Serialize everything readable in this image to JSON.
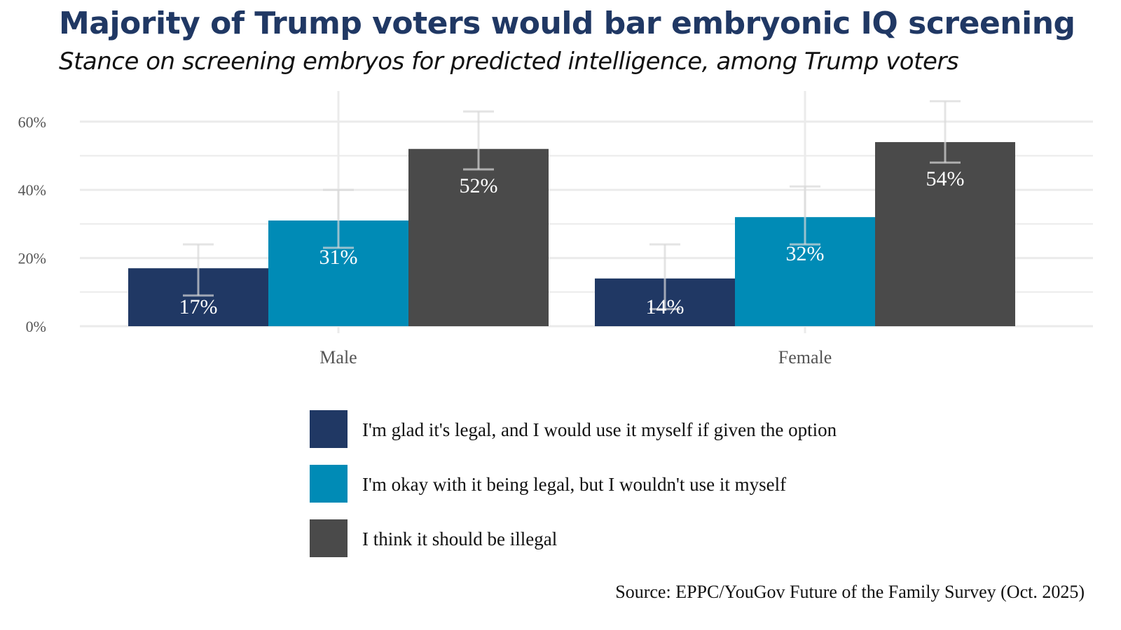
{
  "chart_data": {
    "type": "bar",
    "title": "Majority of Trump voters would bar embryonic IQ screening",
    "subtitle": "Stance on screening embryos for predicted intelligence, among Trump voters",
    "categories": [
      "Male",
      "Female"
    ],
    "series": [
      {
        "name": "I'm glad it's legal, and I would use it myself if given the option",
        "color": "#203864",
        "values": [
          17,
          14
        ],
        "labels": [
          "17%",
          "14%"
        ],
        "error_low": [
          9,
          5
        ],
        "error_high": [
          24,
          24
        ]
      },
      {
        "name": "I'm okay with it being legal, but I wouldn't use it myself",
        "color": "#008BB6",
        "values": [
          31,
          32
        ],
        "labels": [
          "31%",
          "32%"
        ],
        "error_low": [
          23,
          24
        ],
        "error_high": [
          40,
          41
        ]
      },
      {
        "name": "I think it should be illegal",
        "color": "#4A4A4A",
        "values": [
          52,
          54
        ],
        "labels": [
          "52%",
          "54%"
        ],
        "error_low": [
          46,
          48
        ],
        "error_high": [
          63,
          66
        ]
      }
    ],
    "yticks": [
      "0%",
      "20%",
      "40%",
      "60%"
    ],
    "ylim": [
      0,
      69
    ],
    "grid": true,
    "legend_position": "bottom",
    "source": "Source: EPPC/YouGov Future of the Family Survey (Oct. 2025)"
  }
}
